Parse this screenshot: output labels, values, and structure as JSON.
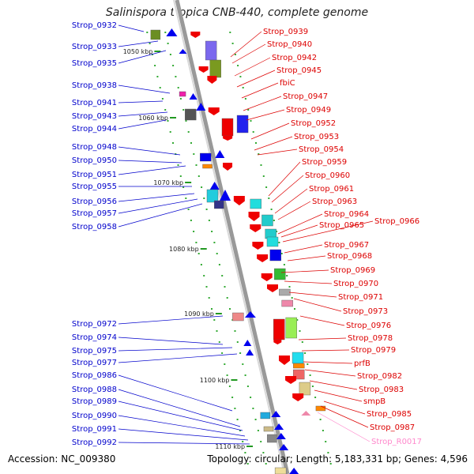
{
  "title": "Salinispora tropica CNB-440, complete genome",
  "accession": "Accession: NC_009380",
  "topology": "Topology: circular; Length: 5,183,331 bp; Genes: 4,596",
  "colors": {
    "left_label": "#0000cc",
    "right_label": "#dd0000",
    "rna_label": "#ff88cc",
    "backbone": "#999999",
    "tick": "#229922"
  },
  "left_labels": [
    "Strop_0932",
    "Strop_0933",
    "Strop_0935",
    "Strop_0938",
    "Strop_0941",
    "Strop_0943",
    "Strop_0944",
    "Strop_0948",
    "Strop_0950",
    "Strop_0951",
    "Strop_0955",
    "Strop_0956",
    "Strop_0957",
    "Strop_0958",
    "Strop_0972",
    "Strop_0974",
    "Strop_0975",
    "Strop_0977",
    "Strop_0986",
    "Strop_0988",
    "Strop_0989",
    "Strop_0990",
    "Strop_0991",
    "Strop_0992"
  ],
  "right_labels": [
    "Strop_0939",
    "Strop_0940",
    "Strop_0942",
    "Strop_0945",
    "fbiC",
    "Strop_0947",
    "Strop_0949",
    "Strop_0952",
    "Strop_0953",
    "Strop_0954",
    "Strop_0959",
    "Strop_0960",
    "Strop_0961",
    "Strop_0963",
    "Strop_0964",
    "Strop_0965",
    "Strop_0966",
    "Strop_0967",
    "Strop_0968",
    "Strop_0969",
    "Strop_0970",
    "Strop_0971",
    "Strop_0973",
    "Strop_0976",
    "Strop_0978",
    "Strop_0979",
    "prfB",
    "Strop_0982",
    "Strop_0983",
    "smpB",
    "Strop_0985",
    "Strop_0987",
    "Strop_R0017"
  ],
  "scale_labels": [
    "1050 kbp",
    "1060 kbp",
    "1070 kbp",
    "1080 kbp",
    "1090 kbp",
    "1100 kbp",
    "1110 kbp"
  ]
}
